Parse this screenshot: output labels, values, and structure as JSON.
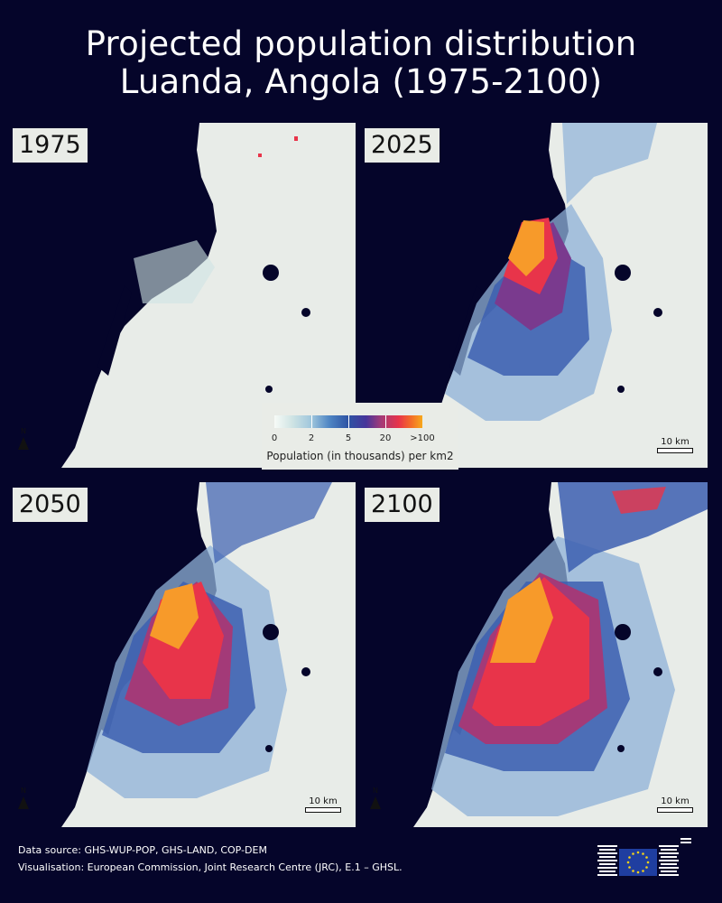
{
  "title_line1": "Projected population distribution",
  "title_line2": "Luanda, Angola (1975-2100)",
  "panels": [
    {
      "year": "1975",
      "scale_label": ""
    },
    {
      "year": "2025",
      "scale_label": "10 km"
    },
    {
      "year": "2050",
      "scale_label": "10 km"
    },
    {
      "year": "2100",
      "scale_label": "10 km"
    }
  ],
  "north_label": "N",
  "legend": {
    "ticks": [
      "0",
      "2",
      "5",
      "20",
      ">100"
    ],
    "title": "Population (in thousands) per km2"
  },
  "footer": {
    "line1": "Data source: GHS-WUP-POP, GHS-LAND, COP-DEM",
    "line2": "Visualisation: European Commission, Joint Research Centre (JRC), E.1 – GHSL."
  },
  "colors": {
    "background": "#05052a",
    "land": "#e8ece8",
    "ocean": "#05052a",
    "low": "#cfe4e4",
    "mid": "#3c5fb0",
    "high": "#e8344a",
    "peak": "#f7a81c"
  }
}
